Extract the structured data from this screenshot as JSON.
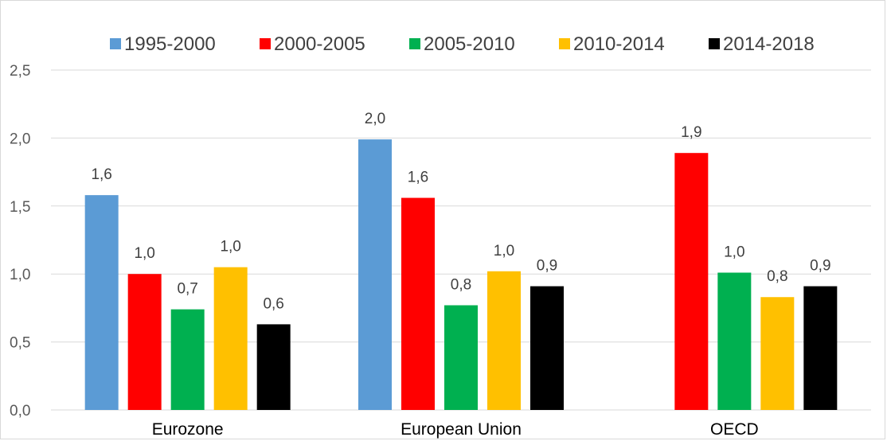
{
  "chart_data": {
    "type": "bar",
    "categories": [
      "Eurozone",
      "European Union",
      "OECD"
    ],
    "series": [
      {
        "name": "1995-2000",
        "color": "#5b9bd5",
        "values": [
          1.58,
          1.99,
          null
        ],
        "labels": [
          "1,6",
          "2,0",
          ""
        ]
      },
      {
        "name": "2000-2005",
        "color": "#ff0000",
        "values": [
          1.0,
          1.56,
          1.89
        ],
        "labels": [
          "1,0",
          "1,6",
          "1,9"
        ]
      },
      {
        "name": "2005-2010",
        "color": "#00b050",
        "values": [
          0.74,
          0.77,
          1.01
        ],
        "labels": [
          "0,7",
          "0,8",
          "1,0"
        ]
      },
      {
        "name": "2010-2014",
        "color": "#ffc000",
        "values": [
          1.05,
          1.02,
          0.83
        ],
        "labels": [
          "1,0",
          "1,0",
          "0,8"
        ]
      },
      {
        "name": "2014-2018",
        "color": "#000000",
        "values": [
          0.63,
          0.91,
          0.91
        ],
        "labels": [
          "0,6",
          "0,9",
          "0,9"
        ]
      }
    ],
    "ylim": [
      0,
      2.5
    ],
    "yticks": [
      0,
      0.5,
      1.0,
      1.5,
      2.0,
      2.5
    ],
    "ytick_labels": [
      "0,0",
      "0,5",
      "1,0",
      "1,5",
      "2,0",
      "2,5"
    ],
    "grid": true,
    "legend_position": "top",
    "title": "",
    "xlabel": "",
    "ylabel": ""
  }
}
